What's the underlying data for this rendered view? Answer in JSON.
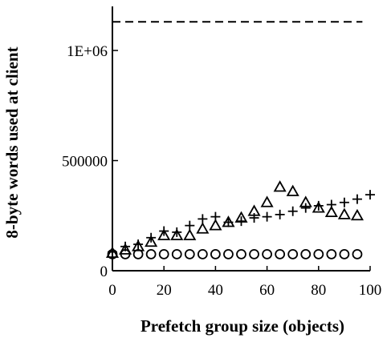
{
  "chart_data": {
    "type": "scatter",
    "title": "",
    "xlabel": "Prefetch group size (objects)",
    "ylabel": "8-byte words used at client",
    "xlim": [
      0,
      100
    ],
    "ylim": [
      0,
      1200000
    ],
    "x_ticks": [
      0,
      20,
      40,
      60,
      80,
      100
    ],
    "x_tick_labels": [
      "0",
      "20",
      "40",
      "60",
      "80",
      "100"
    ],
    "y_ticks": [
      0,
      500000,
      1000000
    ],
    "y_tick_labels": [
      "0",
      "500000",
      "1E+06"
    ],
    "grid": false,
    "legend": "none",
    "reference_line": {
      "y": 1130000,
      "x_range": [
        0,
        97
      ],
      "style": "dashed"
    },
    "series": [
      {
        "marker": "circle",
        "x": [
          0,
          5,
          10,
          15,
          20,
          25,
          30,
          35,
          40,
          45,
          50,
          55,
          60,
          65,
          70,
          75,
          80,
          85,
          90,
          95
        ],
        "y": [
          75000,
          75000,
          75000,
          75000,
          75000,
          75000,
          75000,
          75000,
          75000,
          75000,
          75000,
          75000,
          75000,
          75000,
          75000,
          75000,
          75000,
          75000,
          75000,
          75000
        ]
      },
      {
        "marker": "plus",
        "x": [
          0,
          5,
          10,
          15,
          20,
          25,
          30,
          35,
          40,
          45,
          50,
          55,
          60,
          65,
          70,
          75,
          80,
          85,
          90,
          95,
          100
        ],
        "y": [
          85000,
          110000,
          120000,
          150000,
          180000,
          175000,
          205000,
          235000,
          245000,
          220000,
          225000,
          240000,
          245000,
          255000,
          270000,
          285000,
          295000,
          300000,
          310000,
          325000,
          345000
        ]
      },
      {
        "marker": "triangle",
        "x": [
          0,
          5,
          10,
          15,
          20,
          25,
          30,
          35,
          40,
          45,
          50,
          55,
          60,
          65,
          70,
          75,
          80,
          85,
          90,
          95
        ],
        "y": [
          80000,
          95000,
          110000,
          130000,
          160000,
          160000,
          160000,
          190000,
          205000,
          220000,
          240000,
          270000,
          310000,
          380000,
          360000,
          310000,
          285000,
          265000,
          255000,
          250000
        ]
      }
    ]
  }
}
